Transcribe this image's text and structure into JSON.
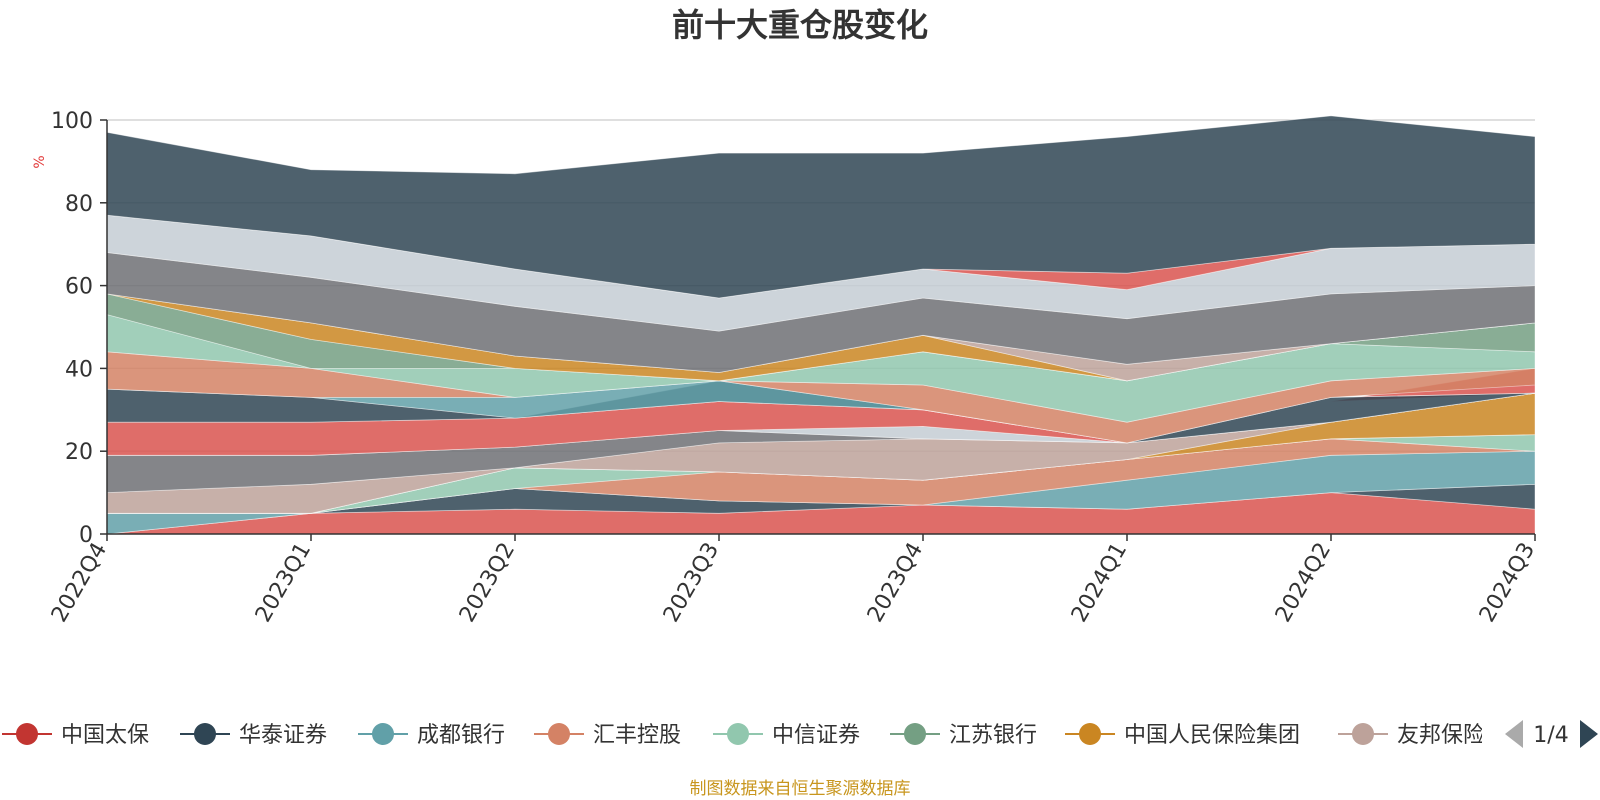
{
  "chart_data": {
    "type": "area",
    "title": "前十大重仓股变化",
    "ylabel": "%",
    "ylim": [
      0,
      100
    ],
    "yticks": [
      0,
      20,
      40,
      60,
      80,
      100
    ],
    "categories": [
      "2022Q4",
      "2023Q1",
      "2023Q2",
      "2023Q3",
      "2023Q4",
      "2024Q1",
      "2024Q2",
      "2024Q3"
    ],
    "bands": [
      {
        "color": "#d9534f",
        "lower": [
          0,
          5,
          6,
          5,
          7,
          6,
          10,
          6
        ],
        "upper": [
          0,
          5,
          6,
          5,
          7,
          6,
          10,
          6
        ]
      },
      {
        "color": "#d9534f",
        "lower": [
          0,
          0,
          0,
          0,
          0,
          0,
          0,
          0
        ],
        "upper": [
          0,
          5,
          6,
          5,
          7,
          6,
          10,
          6
        ]
      },
      {
        "color": "#2f4554",
        "lower": [
          0,
          5,
          6,
          5,
          7,
          6,
          10,
          6
        ],
        "upper": [
          0,
          5,
          11,
          8,
          7,
          6,
          10,
          12
        ]
      },
      {
        "color": "#61a0a8",
        "lower": [
          0,
          5,
          11,
          8,
          7,
          6,
          10,
          12
        ],
        "upper": [
          5,
          5,
          11,
          8,
          7,
          13,
          19,
          20
        ]
      },
      {
        "color": "#d48265",
        "lower": [
          5,
          5,
          11,
          8,
          7,
          13,
          19,
          20
        ],
        "upper": [
          5,
          5,
          11,
          15,
          13,
          18,
          23,
          20
        ]
      },
      {
        "color": "#91c7ae",
        "lower": [
          5,
          5,
          11,
          15,
          13,
          18,
          23,
          20
        ],
        "upper": [
          5,
          5,
          16,
          15,
          13,
          18,
          23,
          24
        ]
      },
      {
        "color": "#749f83",
        "lower": [
          5,
          5,
          16,
          15,
          13,
          18,
          23,
          24
        ],
        "upper": [
          5,
          5,
          16,
          15,
          13,
          18,
          23,
          24
        ]
      },
      {
        "color": "#ca8622",
        "lower": [
          5,
          5,
          16,
          15,
          13,
          18,
          23,
          24
        ],
        "upper": [
          5,
          5,
          16,
          15,
          13,
          18,
          27,
          34
        ]
      },
      {
        "color": "#bda29a",
        "lower": [
          5,
          5,
          16,
          15,
          13,
          18,
          27,
          34
        ],
        "upper": [
          10,
          12,
          16,
          22,
          23,
          22,
          27,
          34
        ]
      },
      {
        "color": "#6e7074",
        "lower": [
          10,
          12,
          16,
          22,
          23,
          22,
          27,
          34
        ],
        "upper": [
          19,
          19,
          21,
          25,
          23,
          22,
          27,
          34
        ]
      },
      {
        "color": "#c4ccd3",
        "lower": [
          19,
          19,
          21,
          25,
          23,
          22,
          27,
          34
        ],
        "upper": [
          19,
          19,
          21,
          25,
          26,
          22,
          27,
          34
        ]
      },
      {
        "color": "#d9534f",
        "lower": [
          19,
          19,
          21,
          25,
          26,
          22,
          32,
          34
        ],
        "upper": [
          27,
          27,
          28,
          32,
          30,
          22,
          32,
          40
        ]
      },
      {
        "color": "#2f4554",
        "lower": [
          27,
          27,
          28,
          32,
          30,
          22,
          27,
          34
        ],
        "upper": [
          35,
          33,
          28,
          37,
          30,
          22,
          33,
          34
        ]
      },
      {
        "color": "#61a0a8",
        "lower": [
          35,
          33,
          28,
          32,
          30,
          22,
          33,
          34
        ],
        "upper": [
          35,
          33,
          33,
          37,
          30,
          22,
          33,
          34
        ]
      },
      {
        "color": "#d48265",
        "lower": [
          35,
          33,
          33,
          37,
          30,
          22,
          33,
          36
        ],
        "upper": [
          44,
          40,
          33,
          37,
          36,
          27,
          37,
          40
        ]
      },
      {
        "color": "#91c7ae",
        "lower": [
          44,
          40,
          33,
          37,
          36,
          27,
          37,
          40
        ],
        "upper": [
          53,
          40,
          40,
          37,
          44,
          37,
          46,
          44
        ]
      },
      {
        "color": "#749f83",
        "lower": [
          53,
          40,
          40,
          37,
          44,
          37,
          46,
          44
        ],
        "upper": [
          58,
          47,
          40,
          37,
          44,
          37,
          46,
          51
        ]
      },
      {
        "color": "#ca8622",
        "lower": [
          58,
          47,
          40,
          37,
          44,
          37,
          46,
          51
        ],
        "upper": [
          58,
          51,
          43,
          39,
          48,
          37,
          46,
          51
        ]
      },
      {
        "color": "#bda29a",
        "lower": [
          58,
          51,
          43,
          39,
          48,
          37,
          46,
          51
        ],
        "upper": [
          58,
          51,
          43,
          39,
          48,
          41,
          46,
          51
        ]
      },
      {
        "color": "#6e7074",
        "lower": [
          58,
          51,
          43,
          39,
          48,
          41,
          46,
          51
        ],
        "upper": [
          68,
          62,
          55,
          49,
          57,
          52,
          58,
          60
        ]
      },
      {
        "color": "#c4ccd3",
        "lower": [
          68,
          62,
          55,
          49,
          57,
          52,
          58,
          60
        ],
        "upper": [
          77,
          72,
          64,
          57,
          64,
          59,
          69,
          70
        ]
      },
      {
        "color": "#d9534f",
        "lower": [
          77,
          72,
          64,
          57,
          64,
          59,
          69,
          70
        ],
        "upper": [
          77,
          72,
          64,
          57,
          64,
          63,
          69,
          70
        ]
      },
      {
        "color": "#2f4554",
        "lower": [
          77,
          72,
          64,
          57,
          64,
          63,
          69,
          70
        ],
        "upper": [
          97,
          88,
          87,
          92,
          92,
          96,
          101,
          96
        ]
      }
    ],
    "legend": [
      {
        "label": "中国太保",
        "color": "#c23531"
      },
      {
        "label": "华泰证券",
        "color": "#2f4554"
      },
      {
        "label": "成都银行",
        "color": "#61a0a8"
      },
      {
        "label": "汇丰控股",
        "color": "#d48265"
      },
      {
        "label": "中信证券",
        "color": "#91c7ae"
      },
      {
        "label": "江苏银行",
        "color": "#749f83"
      },
      {
        "label": "中国人民保险集团",
        "color": "#ca8622"
      },
      {
        "label": "友邦保险",
        "color": "#bda29a"
      }
    ],
    "legend_page": "1/4",
    "source": "制图数据来自恒生聚源数据库"
  }
}
